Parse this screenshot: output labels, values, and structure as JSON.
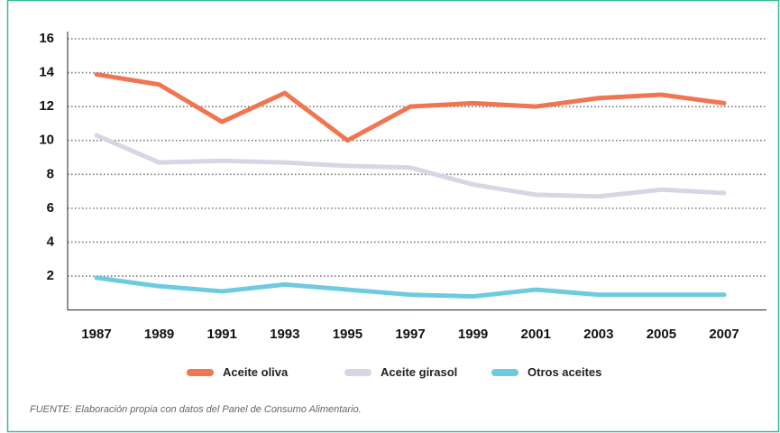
{
  "chart_data": {
    "type": "line",
    "categories": [
      "1987",
      "1989",
      "1991",
      "1993",
      "1995",
      "1997",
      "1999",
      "2001",
      "2003",
      "2005",
      "2007"
    ],
    "series": [
      {
        "name": "Aceite oliva",
        "color": "#ef7650",
        "values": [
          13.9,
          13.3,
          11.1,
          12.8,
          10.0,
          12.0,
          12.2,
          12.0,
          12.5,
          12.7,
          12.2
        ]
      },
      {
        "name": "Aceite girasol",
        "color": "#d9d5e6",
        "values": [
          10.3,
          8.7,
          8.8,
          8.7,
          8.5,
          8.4,
          7.4,
          6.8,
          6.7,
          7.1,
          6.9
        ]
      },
      {
        "name": "Otros aceites",
        "color": "#6ecbdf",
        "values": [
          1.9,
          1.4,
          1.1,
          1.5,
          1.2,
          0.9,
          0.8,
          1.2,
          0.9,
          0.9,
          0.9
        ]
      }
    ],
    "ylim": [
      0,
      16
    ],
    "yticks": [
      2,
      4,
      6,
      8,
      10,
      12,
      14,
      16
    ],
    "grid": true,
    "source": "FUENTE: Elaboración propia con datos del Panel de Consumo Alimentario."
  }
}
